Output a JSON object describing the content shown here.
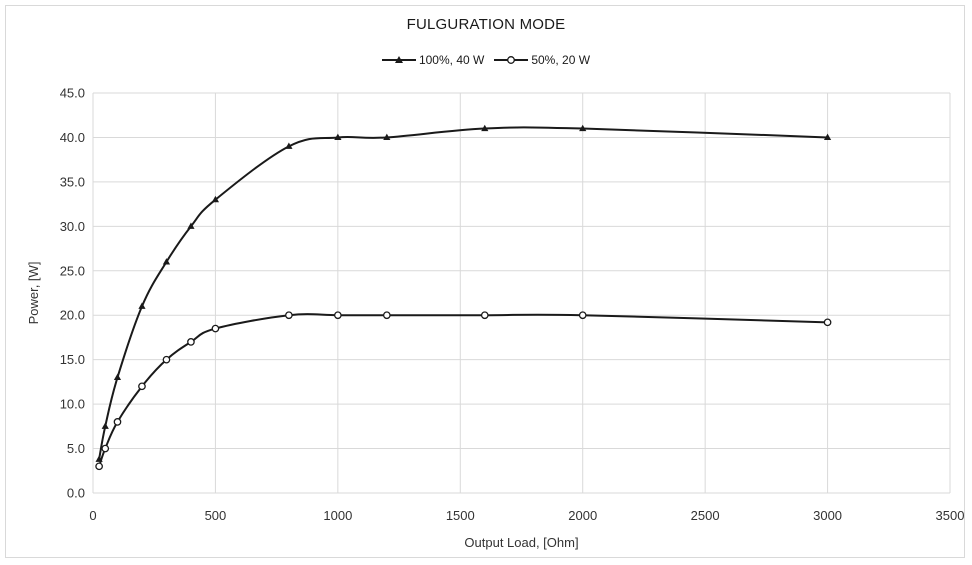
{
  "chart_data": {
    "type": "line",
    "title": "FULGURATION MODE",
    "xlabel": "Output Load, [Ohm]",
    "ylabel": "Power, [W]",
    "xlim": [
      0,
      3500
    ],
    "ylim": [
      0,
      45
    ],
    "x_ticks": [
      "0",
      "500",
      "1000",
      "1500",
      "2000",
      "2500",
      "3000",
      "3500"
    ],
    "y_ticks": [
      "0.0",
      "5.0",
      "10.0",
      "15.0",
      "20.0",
      "25.0",
      "30.0",
      "35.0",
      "40.0",
      "45.0"
    ],
    "grid": true,
    "legend_position": "top-center",
    "series": [
      {
        "name": "100%, 40 W",
        "marker": "triangle",
        "color": "#1a1a1a",
        "points": [
          [
            25,
            3.8
          ],
          [
            50,
            7.5
          ],
          [
            100,
            13
          ],
          [
            200,
            21
          ],
          [
            300,
            26
          ],
          [
            400,
            30
          ],
          [
            500,
            33
          ],
          [
            800,
            39
          ],
          [
            1000,
            40
          ],
          [
            1200,
            40
          ],
          [
            1600,
            41
          ],
          [
            2000,
            41
          ],
          [
            3000,
            40
          ]
        ]
      },
      {
        "name": "50%, 20 W",
        "marker": "circle",
        "color": "#1a1a1a",
        "points": [
          [
            25,
            3
          ],
          [
            50,
            5
          ],
          [
            100,
            8
          ],
          [
            200,
            12
          ],
          [
            300,
            15
          ],
          [
            400,
            17
          ],
          [
            500,
            18.5
          ],
          [
            800,
            20
          ],
          [
            1000,
            20
          ],
          [
            1200,
            20
          ],
          [
            1600,
            20
          ],
          [
            2000,
            20
          ],
          [
            3000,
            19.2
          ]
        ]
      }
    ]
  }
}
